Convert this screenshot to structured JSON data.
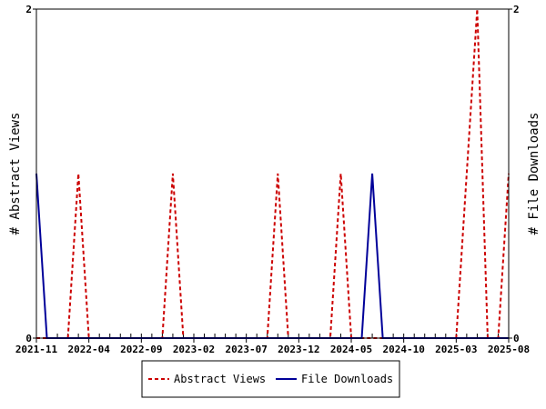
{
  "chart_data": {
    "type": "line",
    "title": "",
    "ylabel_left": "# Abstract Views",
    "ylabel_right": "# File Downloads",
    "ylim": [
      0,
      2
    ],
    "y_ticks": [
      "0",
      "2"
    ],
    "x_start": "2021-11",
    "x_end": "2025-08",
    "x_ticks": [
      "2021-11",
      "2022-04",
      "2022-09",
      "2023-02",
      "2023-07",
      "2023-12",
      "2024-05",
      "2024-10",
      "2025-03",
      "2025-08"
    ],
    "x": [
      "2021-11",
      "2021-12",
      "2022-01",
      "2022-02",
      "2022-03",
      "2022-04",
      "2022-05",
      "2022-06",
      "2022-07",
      "2022-08",
      "2022-09",
      "2022-10",
      "2022-11",
      "2022-12",
      "2023-01",
      "2023-02",
      "2023-03",
      "2023-04",
      "2023-05",
      "2023-06",
      "2023-07",
      "2023-08",
      "2023-09",
      "2023-10",
      "2023-11",
      "2023-12",
      "2024-01",
      "2024-02",
      "2024-03",
      "2024-04",
      "2024-05",
      "2024-06",
      "2024-07",
      "2024-08",
      "2024-09",
      "2024-10",
      "2024-11",
      "2024-12",
      "2025-01",
      "2025-02",
      "2025-03",
      "2025-04",
      "2025-05",
      "2025-06",
      "2025-07",
      "2025-08"
    ],
    "series": [
      {
        "name": "Abstract Views",
        "color": "#cc0000",
        "style": "dashed",
        "values": [
          0,
          0,
          0,
          0,
          1,
          0,
          0,
          0,
          0,
          0,
          0,
          0,
          0,
          1,
          0,
          0,
          0,
          0,
          0,
          0,
          0,
          0,
          0,
          1,
          0,
          0,
          0,
          0,
          0,
          1,
          0,
          0,
          0,
          0,
          0,
          0,
          0,
          0,
          0,
          0,
          0,
          1,
          2,
          0,
          0,
          1
        ]
      },
      {
        "name": "File Downloads",
        "color": "#000099",
        "style": "solid",
        "values": [
          1,
          0,
          0,
          0,
          0,
          0,
          0,
          0,
          0,
          0,
          0,
          0,
          0,
          0,
          0,
          0,
          0,
          0,
          0,
          0,
          0,
          0,
          0,
          0,
          0,
          0,
          0,
          0,
          0,
          0,
          0,
          0,
          1,
          0,
          0,
          0,
          0,
          0,
          0,
          0,
          0,
          0,
          0,
          0,
          0,
          0
        ]
      }
    ],
    "legend": "bottom-center",
    "grid": false
  }
}
